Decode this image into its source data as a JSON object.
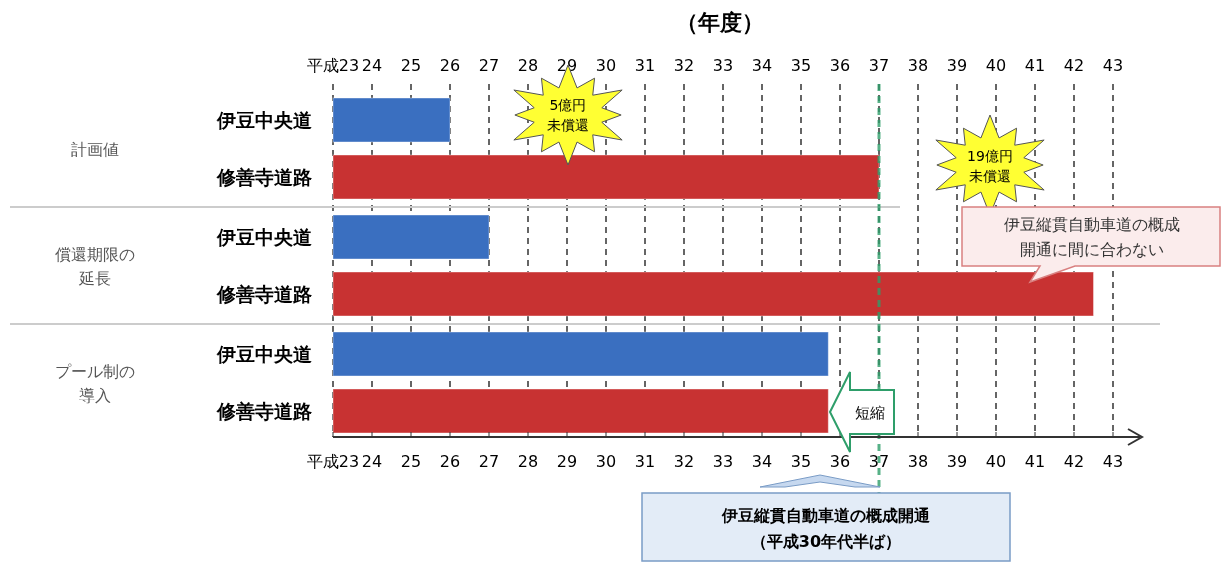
{
  "chart_data": {
    "type": "bar",
    "orientation": "horizontal",
    "xlabel": "（年度）",
    "categories": [
      "伊豆中央道",
      "修善寺道路",
      "伊豆中央道",
      "修善寺道路",
      "伊豆中央道",
      "修善寺道路"
    ],
    "base": [
      23,
      23,
      23,
      23,
      23,
      23
    ],
    "values": [
      3,
      14,
      4,
      19.5,
      12.7,
      12.7
    ],
    "colors": [
      "#3a6fc0",
      "#c83232",
      "#3a6fc0",
      "#c83232",
      "#3a6fc0",
      "#c83232"
    ],
    "xlim": [
      23,
      43
    ],
    "xticks": [
      {
        "value": 23,
        "label": "平成23"
      },
      24,
      25,
      26,
      27,
      28,
      29,
      30,
      31,
      32,
      33,
      34,
      35,
      36,
      37,
      38,
      39,
      40,
      41,
      42,
      43
    ],
    "x2lim": [
      23,
      43
    ],
    "x2ticks": [
      {
        "value": 23,
        "label": "平成23"
      },
      24,
      25,
      26,
      27,
      28,
      29,
      30,
      31,
      32,
      33,
      34,
      35,
      36,
      37,
      38,
      39,
      40,
      41,
      42,
      43
    ],
    "grid": "x",
    "ref_lines": [
      {
        "axis": "x",
        "value": 37,
        "color": "#2e9e6a",
        "line_style": "dashed"
      }
    ],
    "annotations": [
      "計画値",
      "償還期限の延長",
      "プール制の導入",
      "5億円未償還",
      "19億円未償還",
      "伊豆縦貫自動車道の概成開通に間に合わない",
      "短縮",
      "伊豆縦貫自動車道の概成開通（平成30年代半ば）"
    ]
  }
}
